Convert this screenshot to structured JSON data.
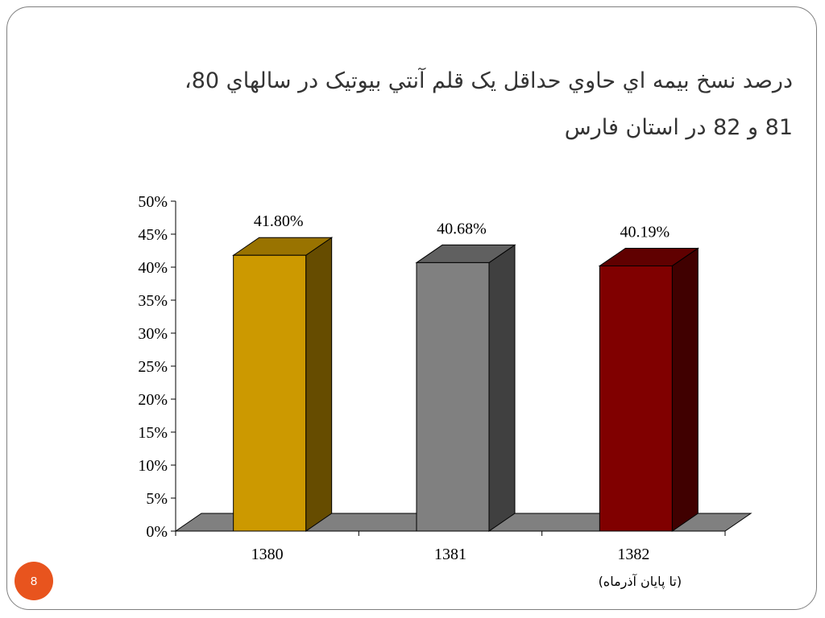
{
  "slide": {
    "title_line1": "درصد نسخ بيمه اي حاوي حداقل يک قلم آنتي بيوتيک در سالهاي 80،",
    "title_line2": "81 و 82 در استان فارس",
    "page_number": "8"
  },
  "chart_data": {
    "type": "bar",
    "title": "",
    "xlabel": "",
    "ylabel": "",
    "ylim": [
      0,
      50
    ],
    "yticks": [
      "0%",
      "5%",
      "10%",
      "15%",
      "20%",
      "25%",
      "30%",
      "35%",
      "40%",
      "45%",
      "50%"
    ],
    "categories": [
      "1380",
      "1381",
      "1382"
    ],
    "category_notes": [
      "",
      "",
      "(تا پايان آذرماه)"
    ],
    "values": [
      41.8,
      40.68,
      40.19
    ],
    "data_labels": [
      "41.80%",
      "40.68%",
      "40.19%"
    ],
    "colors": [
      {
        "front": "#cc9900",
        "side": "#664c00",
        "top": "#997300"
      },
      {
        "front": "#808080",
        "side": "#404040",
        "top": "#606060"
      },
      {
        "front": "#800000",
        "side": "#400000",
        "top": "#600000"
      }
    ],
    "floor_color": "#808080",
    "grid": false,
    "legend": "none",
    "style": "3d-column"
  }
}
